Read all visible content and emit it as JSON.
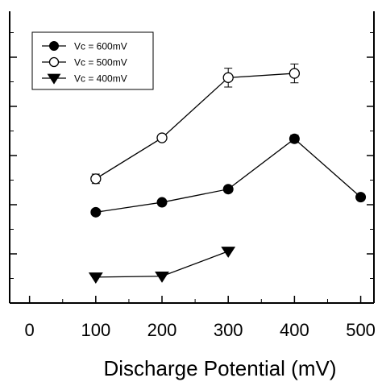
{
  "chart_data": {
    "type": "line",
    "title": "",
    "xlabel": "Discharge Potential (mV)",
    "ylabel": "",
    "xlim": [
      -30,
      520
    ],
    "ylim": [
      0,
      6.2
    ],
    "xticks": [
      0,
      100,
      200,
      300,
      400,
      500
    ],
    "x_tick_labels": [
      "0",
      "100",
      "200",
      "300",
      "400",
      "500"
    ],
    "y_tick_labels_visible": false,
    "grid": false,
    "legend_position": "top-left",
    "series": [
      {
        "name": "Vc = 600mV",
        "marker": "filled-circle",
        "x": [
          100,
          200,
          300,
          400,
          500
        ],
        "y": [
          1.93,
          2.14,
          2.42,
          3.49,
          2.25
        ],
        "yerr": [
          0.03,
          0.03,
          0.03,
          0.08,
          0.03
        ],
        "connect": [
          [
            100,
            400
          ],
          [
            400,
            500
          ]
        ]
      },
      {
        "name": "Vc = 500mV",
        "marker": "open-circle",
        "x": [
          100,
          200,
          300,
          400
        ],
        "y": [
          2.64,
          3.51,
          4.79,
          4.88
        ],
        "yerr": [
          0.1,
          0.03,
          0.2,
          0.2
        ]
      },
      {
        "name": "Vc = 400mV",
        "marker": "filled-triangle-down",
        "x": [
          100,
          200,
          300
        ],
        "y": [
          0.55,
          0.57,
          1.1
        ],
        "yerr": [
          0.02,
          0.02,
          0.02
        ]
      }
    ]
  }
}
